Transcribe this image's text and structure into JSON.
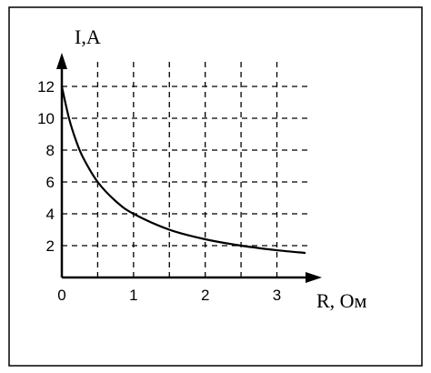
{
  "chart_data": {
    "type": "line",
    "xlabel": "R, Ом",
    "ylabel": "I,A",
    "x": [
      0,
      0.1,
      0.2,
      0.3,
      0.5,
      0.75,
      1,
      1.5,
      2,
      2.5,
      3,
      3.4
    ],
    "series": [
      {
        "color": "#000000",
        "values": [
          12,
          10,
          8.57,
          7.5,
          6,
          4.8,
          4,
          3,
          2.4,
          2,
          1.71,
          1.54
        ]
      }
    ],
    "xlim": [
      0,
      3.45
    ],
    "ylim": [
      0,
      14
    ],
    "xticks": [
      0,
      1,
      2,
      3
    ],
    "yticks": [
      2,
      4,
      6,
      8,
      10,
      12
    ],
    "xgrid": [
      0.5,
      1,
      1.5,
      2,
      2.5,
      3
    ],
    "grid": true
  }
}
